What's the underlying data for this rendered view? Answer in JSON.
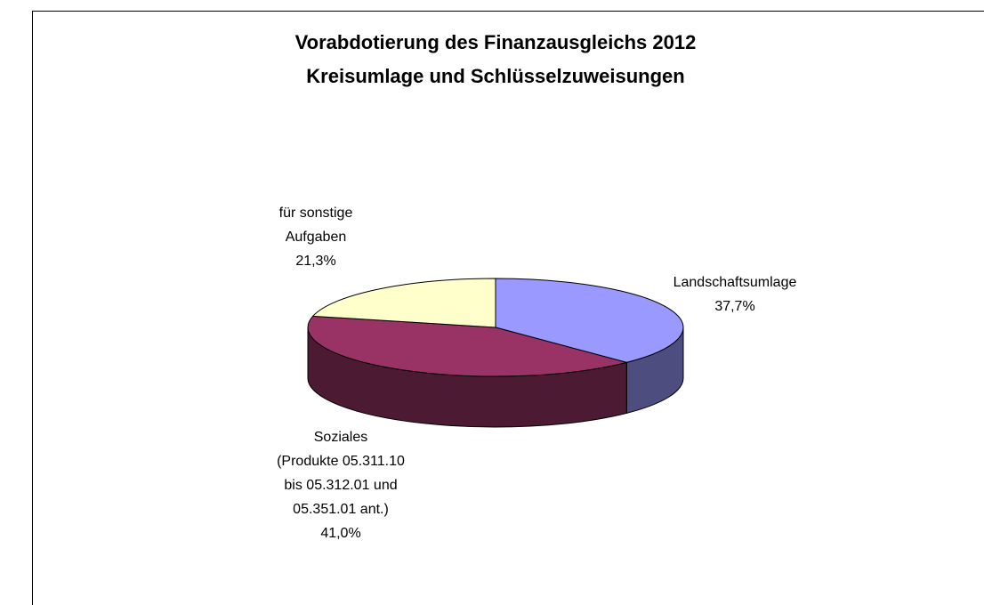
{
  "chart_data": {
    "type": "pie3d",
    "title": "Vorabdotierung des Finanzausgleichs 2012",
    "subtitle": "Kreisumlage und Schlüsselzuweisungen",
    "categories": [
      "Landschaftsumlage",
      "Soziales\n(Produkte 05.311.10\nbis 05.312.01 und\n05.351.01 ant.)",
      "für sonstige\nAufgaben"
    ],
    "values": [
      37.7,
      41.0,
      21.3
    ],
    "value_labels": [
      "37,7%",
      "41,0%",
      "21,3%"
    ],
    "colors": [
      "#9999ff",
      "#993366",
      "#ffffcc"
    ]
  }
}
